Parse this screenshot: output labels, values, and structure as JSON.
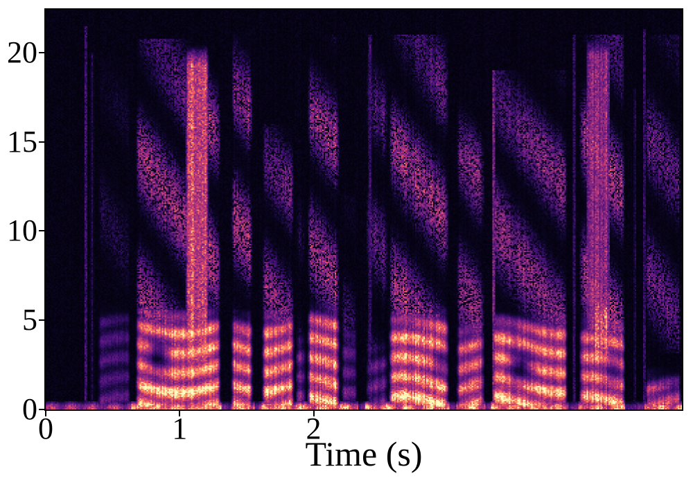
{
  "figure": {
    "background": "#ffffff",
    "axis_color": "#000000"
  },
  "chart_data": {
    "type": "heatmap",
    "subtype": "audio-spectrogram",
    "title": "",
    "xlabel": "Time (s)",
    "ylabel": "",
    "xlim": [
      0,
      4.75
    ],
    "ylim": [
      0,
      22.4
    ],
    "x_ticks": [
      0,
      1,
      2
    ],
    "y_ticks": [
      0,
      5,
      10,
      15,
      20
    ],
    "grid": false,
    "legend": "none",
    "colormap": "magma",
    "colormap_stops": [
      "#000004",
      "#10072f",
      "#3b0f70",
      "#641a80",
      "#8c2981",
      "#b73779",
      "#de4968",
      "#f7705c",
      "#fe9f6d",
      "#fecf92",
      "#fcfdbf"
    ],
    "noise_floor": 0.03,
    "baseline_band": {
      "f_top": 0.5,
      "value_voiced": 0.8,
      "value_silence": 0.5,
      "silence_until": 0.64
    },
    "speech_segments": [
      {
        "t0": 0.38,
        "t1": 0.64,
        "low": 0.24,
        "fLow": 5.5,
        "high": 0.1,
        "fHigh": 20.0
      },
      {
        "t0": 0.67,
        "t1": 1.31,
        "low": 0.84,
        "fLow": 5.3,
        "high": 0.34,
        "fHigh": 20.8,
        "holes": [
          {
            "t": 0.84,
            "f": 3.0,
            "rt": 0.09,
            "rf": 1.05,
            "d": 0.8
          }
        ],
        "columns": [
          {
            "t0": 1.04,
            "t1": 1.22,
            "f0": 2.0,
            "f1": 20.5,
            "v": 0.58
          }
        ]
      },
      {
        "t0": 1.38,
        "t1": 1.55,
        "low": 0.74,
        "fLow": 5.0,
        "high": 0.36,
        "fHigh": 21.0
      },
      {
        "t0": 1.61,
        "t1": 1.86,
        "low": 0.78,
        "fLow": 5.2,
        "high": 0.3,
        "fHigh": 16.0
      },
      {
        "t0": 1.86,
        "t1": 1.95,
        "low": 0.32,
        "fLow": 4.0,
        "high": 0.12,
        "fHigh": 12.0
      },
      {
        "t0": 1.95,
        "t1": 2.2,
        "low": 0.76,
        "fLow": 5.5,
        "high": 0.32,
        "fHigh": 21.0
      },
      {
        "t0": 2.2,
        "t1": 2.33,
        "low": 0.3,
        "fLow": 4.5,
        "high": 0.15,
        "fHigh": 12.0
      },
      {
        "t0": 2.385,
        "t1": 2.56,
        "low": 0.3,
        "fLow": 3.5,
        "high": 0.2,
        "fHigh": 21.0
      },
      {
        "t0": 2.56,
        "t1": 3.015,
        "low": 0.84,
        "fLow": 5.2,
        "high": 0.34,
        "fHigh": 21.0,
        "holes": [
          {
            "t": 2.95,
            "f": 2.6,
            "rt": 0.07,
            "rf": 0.9,
            "d": 0.6
          }
        ]
      },
      {
        "t0": 3.065,
        "t1": 3.28,
        "low": 0.64,
        "fLow": 4.6,
        "high": 0.3,
        "fHigh": 18.0
      },
      {
        "t0": 3.33,
        "t1": 3.9,
        "low": 0.78,
        "fLow": 5.0,
        "high": 0.3,
        "fHigh": 19.0,
        "holes": [
          {
            "t": 3.55,
            "f": 2.4,
            "rt": 0.09,
            "rf": 0.95,
            "d": 0.8
          }
        ]
      },
      {
        "t0": 3.98,
        "t1": 4.33,
        "low": 0.74,
        "fLow": 4.8,
        "high": 0.34,
        "fHigh": 21.0,
        "holes": [
          {
            "t": 4.24,
            "f": 2.2,
            "rt": 0.06,
            "rf": 1.0,
            "d": 0.55
          }
        ],
        "columns": [
          {
            "t0": 4.03,
            "t1": 4.22,
            "f0": 3.0,
            "f1": 21.0,
            "v": 0.4
          },
          {
            "t0": 4.08,
            "t1": 4.22,
            "f0": 2.0,
            "f1": 6.8,
            "v": 0.6
          }
        ]
      },
      {
        "t0": 4.47,
        "t1": 4.75,
        "low": 0.52,
        "fLow": 1.8,
        "high": 0.22,
        "fHigh": 21.0
      }
    ],
    "transient_clicks": [
      {
        "t": 0.3,
        "v": 0.28,
        "f1": 21.5
      },
      {
        "t": 0.345,
        "v": 0.16,
        "f1": 20.0
      },
      {
        "t": 2.42,
        "v": 0.3,
        "f1": 21.0
      },
      {
        "t": 3.345,
        "v": 0.45,
        "f1": 19.0
      },
      {
        "t": 3.945,
        "v": 0.26,
        "f1": 21.0
      },
      {
        "t": 4.4,
        "v": 0.18,
        "f1": 18.0
      },
      {
        "t": 4.47,
        "v": 0.26,
        "f1": 21.3
      }
    ],
    "silence_gaps": [
      [
        1.31,
        1.38
      ],
      [
        1.555,
        1.61
      ],
      [
        2.33,
        2.385
      ],
      [
        3.015,
        3.065
      ],
      [
        3.28,
        3.33
      ],
      [
        3.9,
        3.98
      ],
      [
        4.33,
        4.47
      ]
    ]
  }
}
